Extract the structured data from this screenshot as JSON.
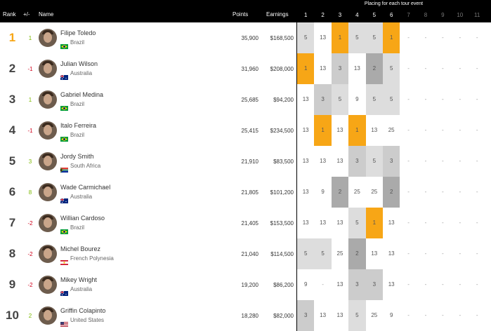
{
  "header": {
    "rank": "Rank",
    "plus_minus": "+/-",
    "name": "Name",
    "points": "Points",
    "earnings": "Earnings",
    "placing": "Placing for each tour event",
    "events": [
      "1",
      "2",
      "3",
      "4",
      "5",
      "6",
      "7",
      "8",
      "9",
      "10",
      "11"
    ]
  },
  "colors": {
    "header_bg": "#000000",
    "gold": "#f7a616",
    "up": "#7ab800",
    "down": "#d0021b",
    "place1": "#f7a616",
    "place2": "#aaaaaa",
    "place3": "#cccccc",
    "place5": "#dddddd",
    "place_low": "#f5f5f5"
  },
  "rows": [
    {
      "rank": "1",
      "change": "1",
      "dir": "up",
      "name": "Filipe Toledo",
      "country": "Brazil",
      "flag": "brazil",
      "points": "35,900",
      "earnings": "$168,500",
      "places": [
        "5",
        "13",
        "1",
        "5",
        "5",
        "1",
        "-",
        "-",
        "-",
        "-",
        "-"
      ]
    },
    {
      "rank": "2",
      "change": "-1",
      "dir": "down",
      "name": "Julian Wilson",
      "country": "Australia",
      "flag": "australia",
      "points": "31,960",
      "earnings": "$208,000",
      "places": [
        "1",
        "13",
        "3",
        "13",
        "2",
        "5",
        "-",
        "-",
        "-",
        "-",
        "-"
      ]
    },
    {
      "rank": "3",
      "change": "1",
      "dir": "up",
      "name": "Gabriel Medina",
      "country": "Brazil",
      "flag": "brazil",
      "points": "25,685",
      "earnings": "$94,200",
      "places": [
        "13",
        "3",
        "5",
        "9",
        "5",
        "5",
        "-",
        "-",
        "-",
        "-",
        "-"
      ]
    },
    {
      "rank": "4",
      "change": "-1",
      "dir": "down",
      "name": "Italo Ferreira",
      "country": "Brazil",
      "flag": "brazil",
      "points": "25,415",
      "earnings": "$234,500",
      "places": [
        "13",
        "1",
        "13",
        "1",
        "13",
        "25",
        "-",
        "-",
        "-",
        "-",
        "-"
      ]
    },
    {
      "rank": "5",
      "change": "3",
      "dir": "up",
      "name": "Jordy Smith",
      "country": "South Africa",
      "flag": "south-africa",
      "points": "21,910",
      "earnings": "$83,500",
      "places": [
        "13",
        "13",
        "13",
        "3",
        "5",
        "3",
        "-",
        "-",
        "-",
        "-",
        "-"
      ]
    },
    {
      "rank": "6",
      "change": "8",
      "dir": "up",
      "name": "Wade Carmichael",
      "country": "Australia",
      "flag": "australia",
      "points": "21,805",
      "earnings": "$101,200",
      "places": [
        "13",
        "9",
        "2",
        "25",
        "25",
        "2",
        "-",
        "-",
        "-",
        "-",
        "-"
      ]
    },
    {
      "rank": "7",
      "change": "-2",
      "dir": "down",
      "name": "Willian Cardoso",
      "country": "Brazil",
      "flag": "brazil",
      "points": "21,405",
      "earnings": "$153,500",
      "places": [
        "13",
        "13",
        "13",
        "5",
        "1",
        "13",
        "-",
        "-",
        "-",
        "-",
        "-"
      ]
    },
    {
      "rank": "8",
      "change": "-2",
      "dir": "down",
      "name": "Michel Bourez",
      "country": "French Polynesia",
      "flag": "french-polynesia",
      "points": "21,040",
      "earnings": "$114,500",
      "places": [
        "5",
        "5",
        "25",
        "2",
        "13",
        "13",
        "-",
        "-",
        "-",
        "-",
        "-"
      ]
    },
    {
      "rank": "9",
      "change": "-2",
      "dir": "down",
      "name": "Mikey Wright",
      "country": "Australia",
      "flag": "australia",
      "points": "19,200",
      "earnings": "$86,200",
      "places": [
        "9",
        "-",
        "13",
        "3",
        "3",
        "13",
        "-",
        "-",
        "-",
        "-",
        "-"
      ]
    },
    {
      "rank": "10",
      "change": "2",
      "dir": "up",
      "name": "Griffin Colapinto",
      "country": "United States",
      "flag": "usa",
      "points": "18,280",
      "earnings": "$82,000",
      "places": [
        "3",
        "13",
        "13",
        "5",
        "25",
        "9",
        "-",
        "-",
        "-",
        "-",
        "-"
      ]
    }
  ]
}
